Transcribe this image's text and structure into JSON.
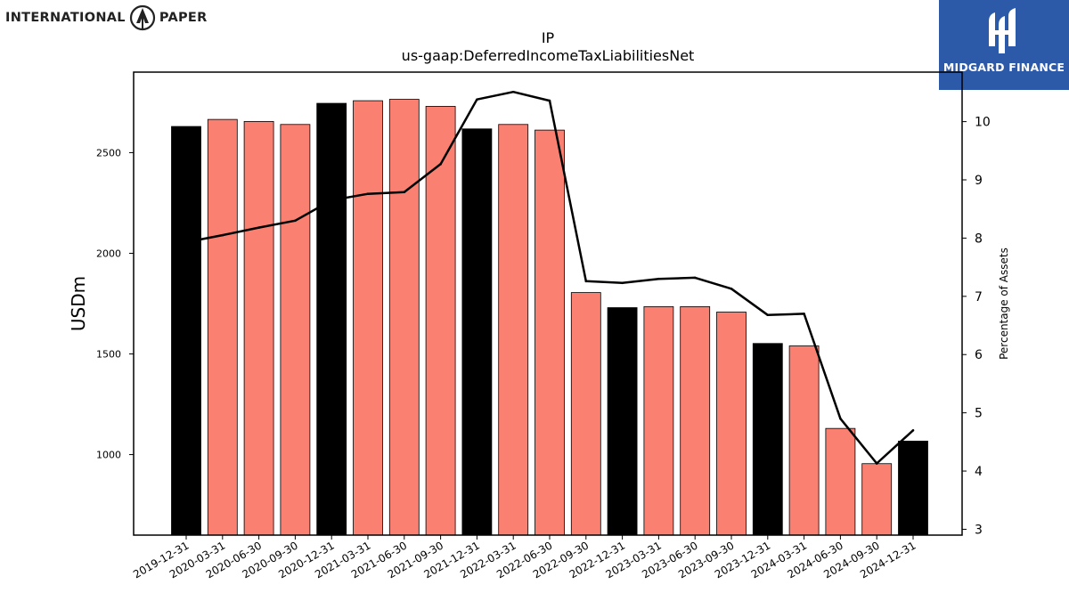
{
  "logos": {
    "left_text_1": "INTERNATIONAL",
    "left_text_2": "PAPER",
    "right_text": "MIDGARD FINANCE"
  },
  "colors": {
    "bar_year_end": "#000000",
    "bar_quarter": "#fa8072",
    "line": "#000000",
    "midgard_bg": "#2d5aa8"
  },
  "chart_data": {
    "type": "bar",
    "title": "IP",
    "subtitle": "us-gaap:DeferredIncomeTaxLiabilitiesNet",
    "ylabel": "USDm",
    "y2label": "Percentage of Assets",
    "ylim": [
      600,
      2900
    ],
    "y2lim": [
      2.9,
      10.85
    ],
    "yticks": [
      1000,
      1500,
      2000,
      2500
    ],
    "y2ticks": [
      3,
      4,
      5,
      6,
      7,
      8,
      9,
      10
    ],
    "categories": [
      "2019-12-31",
      "2020-03-31",
      "2020-06-30",
      "2020-09-30",
      "2020-12-31",
      "2021-03-31",
      "2021-06-30",
      "2021-09-30",
      "2021-12-31",
      "2022-03-31",
      "2022-06-30",
      "2022-09-30",
      "2022-12-31",
      "2023-03-31",
      "2023-06-30",
      "2023-09-30",
      "2023-12-31",
      "2024-03-31",
      "2024-06-30",
      "2024-09-30",
      "2024-12-31"
    ],
    "series": [
      {
        "values": [
          2630,
          2665,
          2655,
          2640,
          2745,
          2758,
          2765,
          2730,
          2618,
          2640,
          2612,
          1805,
          1730,
          1735,
          1735,
          1708,
          1552,
          1540,
          1130,
          955,
          1067
        ]
      },
      {
        "axis": "right",
        "values": [
          7.93,
          8.05,
          8.18,
          8.3,
          8.65,
          8.76,
          8.79,
          9.27,
          10.38,
          10.51,
          10.36,
          7.26,
          7.23,
          7.3,
          7.32,
          7.13,
          6.68,
          6.7,
          4.9,
          4.13,
          4.7
        ]
      }
    ]
  }
}
